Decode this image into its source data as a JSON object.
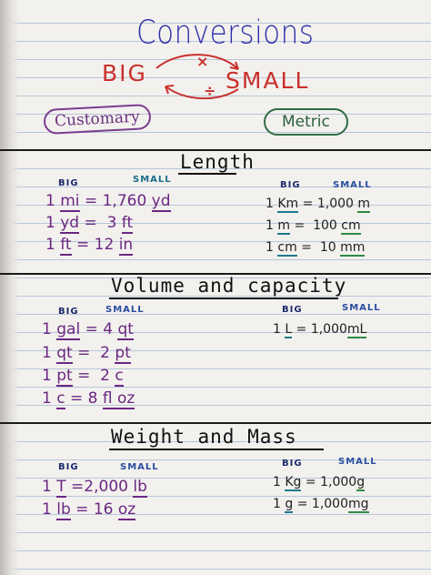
{
  "title": "Conversions",
  "big_small": {
    "big": "BIG",
    "small": "SMALL",
    "multiply": "×",
    "divide": "÷"
  },
  "systems": {
    "customary": "Customary",
    "metric": "Metric"
  },
  "sections": {
    "length": {
      "heading": "Length",
      "customary": {
        "big_label": "BIG",
        "small_label": "SMALL",
        "rows": [
          {
            "qty": "1",
            "big_unit": "mi",
            "eq": "=",
            "value": "1,760",
            "small_unit": "yd"
          },
          {
            "qty": "1",
            "big_unit": "yd",
            "eq": "=",
            "value": "3",
            "small_unit": "ft"
          },
          {
            "qty": "1",
            "big_unit": "ft",
            "eq": "=",
            "value": "12",
            "small_unit": "in"
          }
        ]
      },
      "metric": {
        "big_label": "BIG",
        "small_label": "SMALL",
        "rows": [
          {
            "qty": "1",
            "big_unit": "Km",
            "eq": "=",
            "value": "1,000",
            "small_unit": "m"
          },
          {
            "qty": "1",
            "big_unit": "m",
            "eq": "=",
            "value": "100",
            "small_unit": "cm"
          },
          {
            "qty": "1",
            "big_unit": "cm",
            "eq": "=",
            "value": "10",
            "small_unit": "mm"
          }
        ]
      }
    },
    "volume": {
      "heading": "Volume and capacity",
      "customary": {
        "big_label": "BIG",
        "small_label": "SMALL",
        "rows": [
          {
            "qty": "1",
            "big_unit": "gal",
            "eq": "=",
            "value": "4",
            "small_unit": "qt"
          },
          {
            "qty": "1",
            "big_unit": "qt",
            "eq": "=",
            "value": "2",
            "small_unit": "pt"
          },
          {
            "qty": "1",
            "big_unit": "pt",
            "eq": "=",
            "value": "2",
            "small_unit": "c"
          },
          {
            "qty": "1",
            "big_unit": "c",
            "eq": "=",
            "value": "8",
            "small_unit": "fl oz"
          }
        ]
      },
      "metric": {
        "big_label": "BIG",
        "small_label": "SMALL",
        "rows": [
          {
            "qty": "1",
            "big_unit": "L",
            "eq": "=",
            "value": "1,000",
            "small_unit": "mL"
          }
        ]
      }
    },
    "weight": {
      "heading": "Weight and Mass",
      "customary": {
        "big_label": "BIG",
        "small_label": "SMALL",
        "rows": [
          {
            "qty": "1",
            "big_unit": "T",
            "eq": "=",
            "value": "2,000",
            "small_unit": "lb"
          },
          {
            "qty": "1",
            "big_unit": "lb",
            "eq": "=",
            "value": "16",
            "small_unit": "oz"
          }
        ]
      },
      "metric": {
        "big_label": "BIG",
        "small_label": "SMALL",
        "rows": [
          {
            "qty": "1",
            "big_unit": "Kg",
            "eq": "=",
            "value": "1,000",
            "small_unit": "g"
          },
          {
            "qty": "1",
            "big_unit": "g",
            "eq": "=",
            "value": "1,000",
            "small_unit": "mg"
          }
        ]
      }
    }
  }
}
